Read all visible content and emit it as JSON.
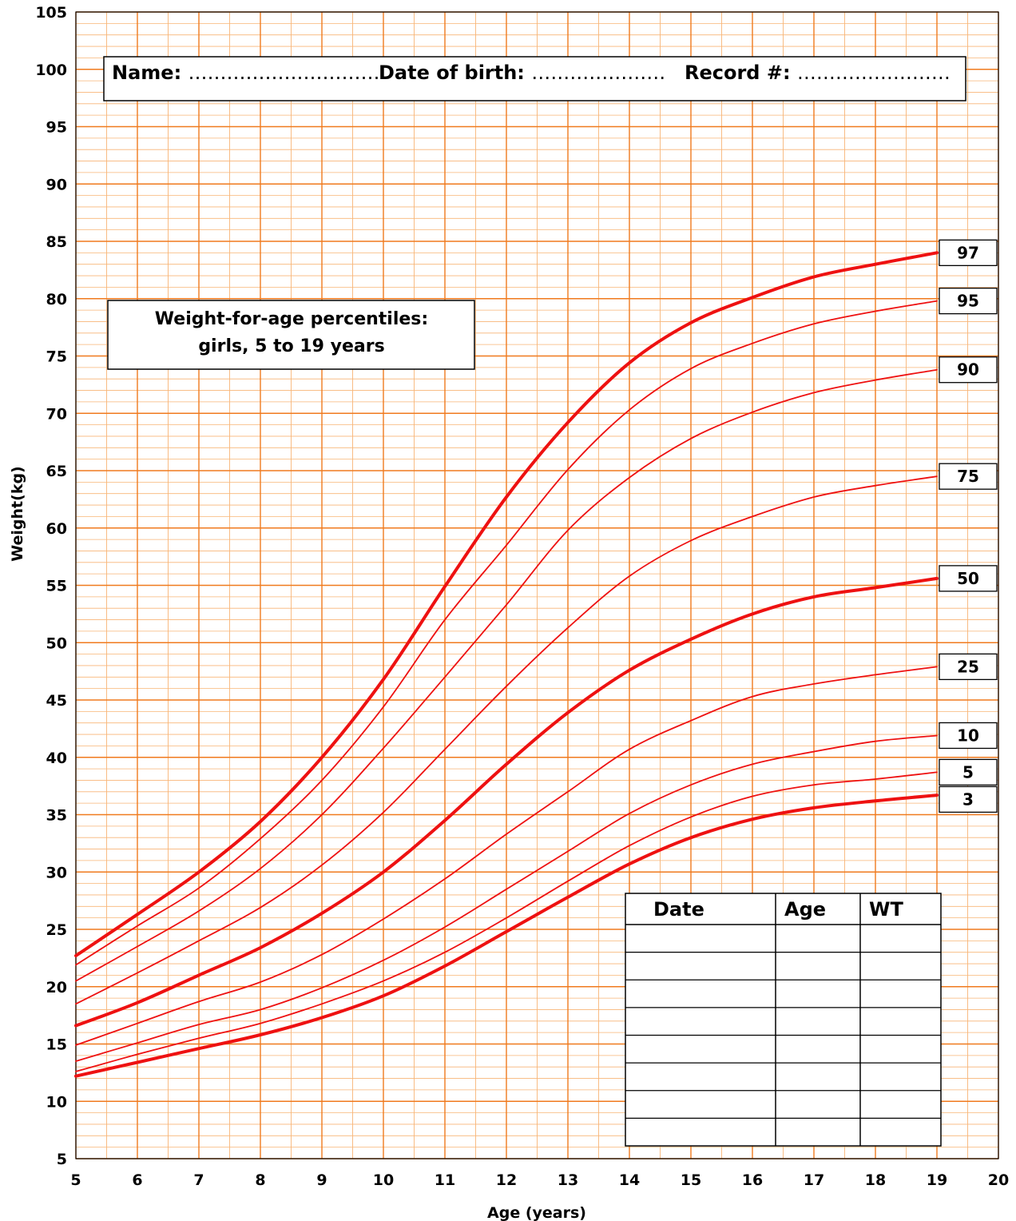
{
  "header_box": {
    "name_label": "Name:",
    "name_dots": "…………………………",
    "dob_label": "Date of birth:",
    "dob_dots": "…………………",
    "record_label": "Record #:",
    "record_dots": "……………………"
  },
  "record_table": {
    "headers": [
      "Date",
      "Age",
      "WT"
    ],
    "empty_rows": 8
  },
  "colors": {
    "major_grid": "#f07a1e",
    "minor_grid": "#f8b577",
    "curve": "#ee1111",
    "frame": "#000000"
  },
  "chart_data": {
    "type": "line",
    "title": "Weight-for-age percentiles:",
    "subtitle": "girls, 5 to 19 years",
    "xlabel": "Age (years)",
    "ylabel": "Weight(kg)",
    "xlim": [
      5,
      20
    ],
    "ylim": [
      5,
      105
    ],
    "x_ticks": [
      5,
      6,
      7,
      8,
      9,
      10,
      11,
      12,
      13,
      14,
      15,
      16,
      17,
      18,
      19,
      20
    ],
    "y_ticks": [
      5,
      10,
      15,
      20,
      25,
      30,
      35,
      40,
      45,
      50,
      55,
      60,
      65,
      70,
      75,
      80,
      85,
      90,
      95,
      100,
      105
    ],
    "grid": true,
    "x": [
      5,
      6,
      7,
      8,
      9,
      10,
      11,
      12,
      13,
      14,
      15,
      16,
      17,
      18,
      19
    ],
    "series": [
      {
        "name": "97",
        "bold": true,
        "values": [
          22.7,
          26.3,
          30.0,
          34.4,
          40.0,
          46.8,
          54.9,
          62.7,
          69.2,
          74.4,
          77.9,
          80.1,
          81.9,
          83.0,
          84.0
        ]
      },
      {
        "name": "95",
        "bold": false,
        "values": [
          21.9,
          25.3,
          28.6,
          32.9,
          38.0,
          44.4,
          52.0,
          58.5,
          65.1,
          70.3,
          73.9,
          76.1,
          77.8,
          78.9,
          79.8
        ]
      },
      {
        "name": "90",
        "bold": false,
        "values": [
          20.5,
          23.5,
          26.6,
          30.3,
          35.0,
          40.8,
          47.0,
          53.3,
          59.8,
          64.4,
          67.8,
          70.1,
          71.8,
          72.9,
          73.8
        ]
      },
      {
        "name": "75",
        "bold": false,
        "values": [
          18.5,
          21.2,
          24.0,
          26.9,
          30.6,
          35.2,
          40.7,
          46.2,
          51.3,
          55.8,
          58.9,
          61.0,
          62.7,
          63.7,
          64.5
        ]
      },
      {
        "name": "50",
        "bold": true,
        "values": [
          16.6,
          18.6,
          21.0,
          23.4,
          26.4,
          30.0,
          34.5,
          39.4,
          43.9,
          47.6,
          50.3,
          52.5,
          54.0,
          54.8,
          55.6
        ]
      },
      {
        "name": "25",
        "bold": false,
        "values": [
          14.9,
          16.8,
          18.7,
          20.4,
          22.8,
          25.9,
          29.4,
          33.3,
          37.0,
          40.7,
          43.2,
          45.3,
          46.4,
          47.2,
          47.9
        ]
      },
      {
        "name": "10",
        "bold": false,
        "values": [
          13.5,
          15.1,
          16.7,
          18.0,
          19.9,
          22.3,
          25.2,
          28.5,
          31.8,
          35.1,
          37.6,
          39.4,
          40.5,
          41.4,
          41.9
        ]
      },
      {
        "name": "5",
        "bold": false,
        "values": [
          12.6,
          14.1,
          15.5,
          16.8,
          18.5,
          20.5,
          23.0,
          26.0,
          29.2,
          32.3,
          34.8,
          36.6,
          37.6,
          38.1,
          38.7
        ]
      },
      {
        "name": "3",
        "bold": true,
        "values": [
          12.2,
          13.4,
          14.6,
          15.8,
          17.3,
          19.2,
          21.8,
          24.8,
          27.8,
          30.7,
          33.0,
          34.6,
          35.6,
          36.2,
          36.7
        ]
      }
    ]
  }
}
